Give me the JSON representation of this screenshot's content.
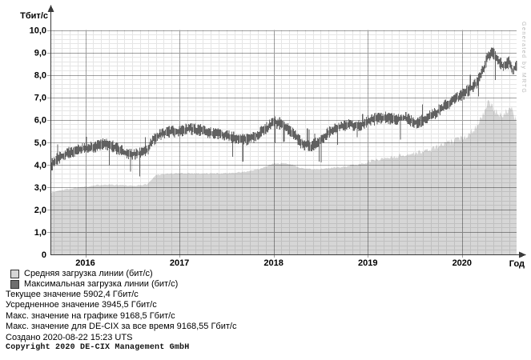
{
  "chart_data": {
    "type": "area",
    "title": "",
    "ylabel": "Тбит/с",
    "xlabel": "Год",
    "ylim": [
      0,
      10
    ],
    "xlim": [
      2015.63,
      2020.58
    ],
    "grid": true,
    "legend_position": "bottom-left",
    "y_tick_values": [
      0,
      1,
      2,
      3,
      4,
      5,
      6,
      7,
      8,
      9,
      10
    ],
    "y_tick_labels": [
      "0",
      "1,0",
      "2,0",
      "3,0",
      "4,0",
      "5,0",
      "6,0",
      "7,0",
      "8,0",
      "9,0",
      "10,0"
    ],
    "y_minor_step": 0.2,
    "x_tick_values": [
      2016,
      2017,
      2018,
      2019,
      2020
    ],
    "x_tick_labels": [
      "2016",
      "2017",
      "2018",
      "2019",
      "2020"
    ],
    "x_minor_step_years": 0.0833,
    "noise_seed": 1337,
    "watermark": "Generated by MRTG",
    "colors": {
      "area_fill": "#d6d6d6",
      "band_stroke": "#585858",
      "grid_minor": "rgba(0,0,0,0.10)",
      "grid_major": "rgba(0,0,0,0.38)",
      "axis": "#3a3a3a",
      "watermark": "#b8b8b8"
    },
    "series": [
      {
        "name": "Средняя загрузка линии (бит/с)",
        "style": "area",
        "color": "#d6d6d6",
        "jitter": 0.05,
        "points": [
          [
            2015.63,
            2.75
          ],
          [
            2015.75,
            2.87
          ],
          [
            2015.9,
            2.97
          ],
          [
            2016.05,
            3.05
          ],
          [
            2016.2,
            3.12
          ],
          [
            2016.35,
            3.1
          ],
          [
            2016.5,
            3.05
          ],
          [
            2016.65,
            3.12
          ],
          [
            2016.7,
            3.3
          ],
          [
            2016.75,
            3.55
          ],
          [
            2016.9,
            3.6
          ],
          [
            2017.1,
            3.62
          ],
          [
            2017.3,
            3.6
          ],
          [
            2017.5,
            3.62
          ],
          [
            2017.7,
            3.68
          ],
          [
            2017.85,
            3.8
          ],
          [
            2018.0,
            4.05
          ],
          [
            2018.15,
            4.05
          ],
          [
            2018.3,
            3.85
          ],
          [
            2018.45,
            3.78
          ],
          [
            2018.6,
            3.85
          ],
          [
            2018.75,
            3.92
          ],
          [
            2018.9,
            4.0
          ],
          [
            2019.05,
            4.18
          ],
          [
            2019.2,
            4.3
          ],
          [
            2019.35,
            4.4
          ],
          [
            2019.5,
            4.5
          ],
          [
            2019.65,
            4.65
          ],
          [
            2019.8,
            4.9
          ],
          [
            2019.95,
            5.1
          ],
          [
            2020.05,
            5.3
          ],
          [
            2020.15,
            5.7
          ],
          [
            2020.22,
            6.2
          ],
          [
            2020.28,
            6.75
          ],
          [
            2020.33,
            6.5
          ],
          [
            2020.38,
            6.25
          ],
          [
            2020.45,
            6.3
          ],
          [
            2020.52,
            6.45
          ],
          [
            2020.58,
            5.95
          ]
        ]
      },
      {
        "name": "Максимальная загрузка линии (бит/с)",
        "style": "band",
        "color": "#6e6e6e",
        "band_amplitude": 0.28,
        "points": [
          [
            2015.63,
            3.95
          ],
          [
            2015.7,
            4.25
          ],
          [
            2015.8,
            4.5
          ],
          [
            2015.9,
            4.65
          ],
          [
            2016.0,
            4.75
          ],
          [
            2016.1,
            4.8
          ],
          [
            2016.18,
            4.95
          ],
          [
            2016.28,
            4.85
          ],
          [
            2016.38,
            4.6
          ],
          [
            2016.48,
            4.45
          ],
          [
            2016.58,
            4.5
          ],
          [
            2016.66,
            4.65
          ],
          [
            2016.72,
            5.1
          ],
          [
            2016.8,
            5.35
          ],
          [
            2016.9,
            5.45
          ],
          [
            2017.0,
            5.5
          ],
          [
            2017.1,
            5.6
          ],
          [
            2017.22,
            5.55
          ],
          [
            2017.35,
            5.4
          ],
          [
            2017.5,
            5.3
          ],
          [
            2017.62,
            5.15
          ],
          [
            2017.72,
            5.1
          ],
          [
            2017.82,
            5.3
          ],
          [
            2017.92,
            5.6
          ],
          [
            2018.0,
            5.9
          ],
          [
            2018.1,
            5.8
          ],
          [
            2018.2,
            5.4
          ],
          [
            2018.3,
            4.95
          ],
          [
            2018.4,
            4.8
          ],
          [
            2018.5,
            5.1
          ],
          [
            2018.6,
            5.5
          ],
          [
            2018.7,
            5.7
          ],
          [
            2018.8,
            5.8
          ],
          [
            2018.9,
            5.7
          ],
          [
            2019.0,
            5.95
          ],
          [
            2019.1,
            6.05
          ],
          [
            2019.2,
            6.1
          ],
          [
            2019.3,
            6.0
          ],
          [
            2019.4,
            6.1
          ],
          [
            2019.5,
            5.85
          ],
          [
            2019.6,
            6.0
          ],
          [
            2019.7,
            6.25
          ],
          [
            2019.8,
            6.55
          ],
          [
            2019.9,
            6.85
          ],
          [
            2020.0,
            7.1
          ],
          [
            2020.08,
            7.35
          ],
          [
            2020.16,
            7.65
          ],
          [
            2020.22,
            8.15
          ],
          [
            2020.27,
            8.8
          ],
          [
            2020.32,
            9.0
          ],
          [
            2020.38,
            8.7
          ],
          [
            2020.44,
            8.35
          ],
          [
            2020.5,
            8.55
          ],
          [
            2020.54,
            8.2
          ],
          [
            2020.58,
            8.45
          ]
        ]
      }
    ]
  },
  "info_lines": [
    "Текущее значение 5902,4 Гбит/с",
    "Усредненное значение 3945,5 Гбит/с",
    "Макс. значение на графике 9168,5 Гбит/с",
    "Макс. значение для DE-CIX за все время 9168,55 Гбит/с",
    "Создано 2020-08-22 15:23 UTS"
  ],
  "copyright": "Copyright 2020 DE-CIX Management GmbH"
}
